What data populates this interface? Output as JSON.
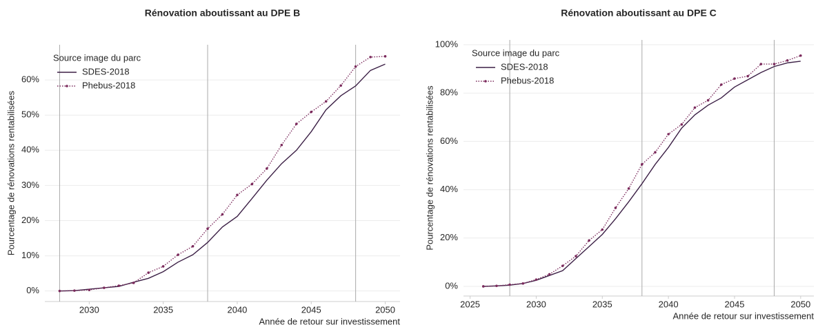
{
  "chart_data": [
    {
      "type": "line",
      "title": "Rénovation aboutissant au DPE B",
      "xlabel": "Année de retour sur investissement",
      "ylabel": "Pourcentage de rénovations rentabilisées",
      "legend_title": "Source image du parc",
      "legend": "upper left",
      "grid": true,
      "x": [
        2028,
        2029,
        2030,
        2031,
        2032,
        2033,
        2034,
        2035,
        2036,
        2037,
        2038,
        2039,
        2040,
        2041,
        2042,
        2043,
        2044,
        2045,
        2046,
        2047,
        2048,
        2049,
        2050
      ],
      "series": [
        {
          "name": "SDES-2018",
          "color": "#3b1f45",
          "dash": "solid",
          "marker": false,
          "values": [
            0,
            0.1,
            0.5,
            0.9,
            1.3,
            2.5,
            3.6,
            5.5,
            8.2,
            10.3,
            13.8,
            18.2,
            21.2,
            26.3,
            31.5,
            36.2,
            40,
            45.3,
            51.5,
            55.5,
            58.3,
            62.7,
            64.5
          ]
        },
        {
          "name": "Phebus-2018",
          "color": "#7b2a5c",
          "dash": "dotted",
          "marker": true,
          "values": [
            0,
            0.1,
            0.3,
            0.9,
            1.5,
            2.3,
            5.2,
            7,
            10.3,
            12.7,
            17.7,
            21.8,
            27.3,
            30.4,
            34.8,
            41.5,
            47.5,
            50.9,
            53.9,
            58.4,
            63.8,
            66.5,
            66.7
          ]
        }
      ],
      "vlines": [
        2028,
        2038,
        2048
      ],
      "xlim": [
        2027,
        2051
      ],
      "xticks": [
        2030,
        2035,
        2040,
        2045,
        2050
      ],
      "ylim": [
        -3,
        70
      ],
      "yticks": [
        {
          "value": 0,
          "label": "0%"
        },
        {
          "value": 10,
          "label": "10%"
        },
        {
          "value": 20,
          "label": "20%"
        },
        {
          "value": 30,
          "label": "30%"
        },
        {
          "value": 40,
          "label": "40%"
        },
        {
          "value": 50,
          "label": "50%"
        },
        {
          "value": 60,
          "label": "60%"
        }
      ]
    },
    {
      "type": "line",
      "title": "Rénovation aboutissant au DPE C",
      "xlabel": "Année de retour sur investissement",
      "ylabel": "Pourcentage de rénovations rentabilisées",
      "legend_title": "Source image du parc",
      "legend": "upper left",
      "grid": true,
      "x": [
        2026,
        2027,
        2028,
        2029,
        2030,
        2031,
        2032,
        2033,
        2034,
        2035,
        2036,
        2037,
        2038,
        2039,
        2040,
        2041,
        2042,
        2043,
        2044,
        2045,
        2046,
        2047,
        2048,
        2049,
        2050
      ],
      "series": [
        {
          "name": "SDES-2018",
          "color": "#3b1f45",
          "dash": "solid",
          "marker": false,
          "values": [
            0,
            0.2,
            0.5,
            1.2,
            2.5,
            4.5,
            6.5,
            11.5,
            16.5,
            21.5,
            28,
            35,
            42.5,
            50.5,
            57.5,
            65.5,
            71,
            75,
            78,
            82.5,
            85.5,
            88.5,
            91,
            92.5,
            93.2
          ]
        },
        {
          "name": "Phebus-2018",
          "color": "#7b2a5c",
          "dash": "dotted",
          "marker": true,
          "values": [
            0,
            0.2,
            0.7,
            1.2,
            2.8,
            5,
            8.5,
            12.5,
            19,
            23.5,
            32.5,
            40.5,
            50.5,
            55.5,
            63,
            67,
            74,
            77,
            83.5,
            86,
            87,
            92,
            92,
            93.5,
            95.5
          ]
        }
      ],
      "vlines": [
        2028,
        2038,
        2048
      ],
      "xlim": [
        2024.5,
        2051
      ],
      "xticks": [
        2025,
        2030,
        2035,
        2040,
        2045,
        2050
      ],
      "ylim": [
        -4,
        102
      ],
      "yticks": [
        {
          "value": 0,
          "label": "0%"
        },
        {
          "value": 20,
          "label": "20%"
        },
        {
          "value": 40,
          "label": "40%"
        },
        {
          "value": 60,
          "label": "60%"
        },
        {
          "value": 80,
          "label": "80%"
        },
        {
          "value": 100,
          "label": "100%"
        }
      ]
    }
  ]
}
